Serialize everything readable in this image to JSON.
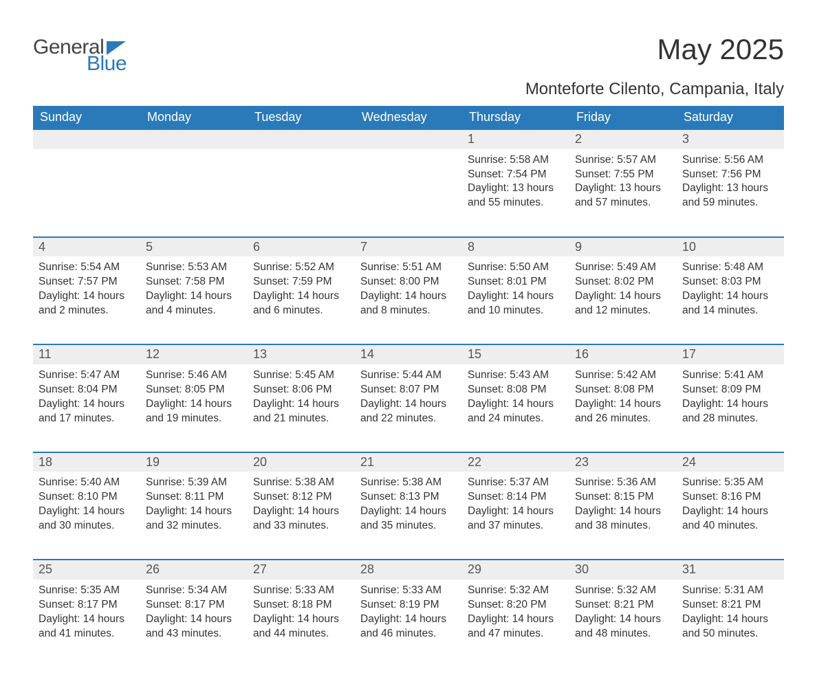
{
  "logo": {
    "text1": "General",
    "text2": "Blue",
    "text1_color": "#444444",
    "text2_color": "#2a7ab9",
    "triangle_color": "#2a7ab9"
  },
  "title": "May 2025",
  "subtitle": "Monteforte Cilento, Campania, Italy",
  "colors": {
    "header_bg": "#2a7ab9",
    "header_text": "#ffffff",
    "daynum_bg": "#eeeeee",
    "daynum_text": "#555555",
    "body_text": "#333333",
    "divider": "#2a7ab9",
    "page_bg": "#ffffff"
  },
  "typography": {
    "title_fontsize": 42,
    "subtitle_fontsize": 24,
    "header_fontsize": 18,
    "daynum_fontsize": 18,
    "cell_fontsize": 15.5,
    "logo_fontsize": 30,
    "font_family": "Arial"
  },
  "columns": [
    "Sunday",
    "Monday",
    "Tuesday",
    "Wednesday",
    "Thursday",
    "Friday",
    "Saturday"
  ],
  "weeks": [
    [
      null,
      null,
      null,
      null,
      {
        "day": "1",
        "sunrise": "5:58 AM",
        "sunset": "7:54 PM",
        "daylight": "13 hours and 55 minutes."
      },
      {
        "day": "2",
        "sunrise": "5:57 AM",
        "sunset": "7:55 PM",
        "daylight": "13 hours and 57 minutes."
      },
      {
        "day": "3",
        "sunrise": "5:56 AM",
        "sunset": "7:56 PM",
        "daylight": "13 hours and 59 minutes."
      }
    ],
    [
      {
        "day": "4",
        "sunrise": "5:54 AM",
        "sunset": "7:57 PM",
        "daylight": "14 hours and 2 minutes."
      },
      {
        "day": "5",
        "sunrise": "5:53 AM",
        "sunset": "7:58 PM",
        "daylight": "14 hours and 4 minutes."
      },
      {
        "day": "6",
        "sunrise": "5:52 AM",
        "sunset": "7:59 PM",
        "daylight": "14 hours and 6 minutes."
      },
      {
        "day": "7",
        "sunrise": "5:51 AM",
        "sunset": "8:00 PM",
        "daylight": "14 hours and 8 minutes."
      },
      {
        "day": "8",
        "sunrise": "5:50 AM",
        "sunset": "8:01 PM",
        "daylight": "14 hours and 10 minutes."
      },
      {
        "day": "9",
        "sunrise": "5:49 AM",
        "sunset": "8:02 PM",
        "daylight": "14 hours and 12 minutes."
      },
      {
        "day": "10",
        "sunrise": "5:48 AM",
        "sunset": "8:03 PM",
        "daylight": "14 hours and 14 minutes."
      }
    ],
    [
      {
        "day": "11",
        "sunrise": "5:47 AM",
        "sunset": "8:04 PM",
        "daylight": "14 hours and 17 minutes."
      },
      {
        "day": "12",
        "sunrise": "5:46 AM",
        "sunset": "8:05 PM",
        "daylight": "14 hours and 19 minutes."
      },
      {
        "day": "13",
        "sunrise": "5:45 AM",
        "sunset": "8:06 PM",
        "daylight": "14 hours and 21 minutes."
      },
      {
        "day": "14",
        "sunrise": "5:44 AM",
        "sunset": "8:07 PM",
        "daylight": "14 hours and 22 minutes."
      },
      {
        "day": "15",
        "sunrise": "5:43 AM",
        "sunset": "8:08 PM",
        "daylight": "14 hours and 24 minutes."
      },
      {
        "day": "16",
        "sunrise": "5:42 AM",
        "sunset": "8:08 PM",
        "daylight": "14 hours and 26 minutes."
      },
      {
        "day": "17",
        "sunrise": "5:41 AM",
        "sunset": "8:09 PM",
        "daylight": "14 hours and 28 minutes."
      }
    ],
    [
      {
        "day": "18",
        "sunrise": "5:40 AM",
        "sunset": "8:10 PM",
        "daylight": "14 hours and 30 minutes."
      },
      {
        "day": "19",
        "sunrise": "5:39 AM",
        "sunset": "8:11 PM",
        "daylight": "14 hours and 32 minutes."
      },
      {
        "day": "20",
        "sunrise": "5:38 AM",
        "sunset": "8:12 PM",
        "daylight": "14 hours and 33 minutes."
      },
      {
        "day": "21",
        "sunrise": "5:38 AM",
        "sunset": "8:13 PM",
        "daylight": "14 hours and 35 minutes."
      },
      {
        "day": "22",
        "sunrise": "5:37 AM",
        "sunset": "8:14 PM",
        "daylight": "14 hours and 37 minutes."
      },
      {
        "day": "23",
        "sunrise": "5:36 AM",
        "sunset": "8:15 PM",
        "daylight": "14 hours and 38 minutes."
      },
      {
        "day": "24",
        "sunrise": "5:35 AM",
        "sunset": "8:16 PM",
        "daylight": "14 hours and 40 minutes."
      }
    ],
    [
      {
        "day": "25",
        "sunrise": "5:35 AM",
        "sunset": "8:17 PM",
        "daylight": "14 hours and 41 minutes."
      },
      {
        "day": "26",
        "sunrise": "5:34 AM",
        "sunset": "8:17 PM",
        "daylight": "14 hours and 43 minutes."
      },
      {
        "day": "27",
        "sunrise": "5:33 AM",
        "sunset": "8:18 PM",
        "daylight": "14 hours and 44 minutes."
      },
      {
        "day": "28",
        "sunrise": "5:33 AM",
        "sunset": "8:19 PM",
        "daylight": "14 hours and 46 minutes."
      },
      {
        "day": "29",
        "sunrise": "5:32 AM",
        "sunset": "8:20 PM",
        "daylight": "14 hours and 47 minutes."
      },
      {
        "day": "30",
        "sunrise": "5:32 AM",
        "sunset": "8:21 PM",
        "daylight": "14 hours and 48 minutes."
      },
      {
        "day": "31",
        "sunrise": "5:31 AM",
        "sunset": "8:21 PM",
        "daylight": "14 hours and 50 minutes."
      }
    ]
  ],
  "labels": {
    "sunrise": "Sunrise:",
    "sunset": "Sunset:",
    "daylight": "Daylight:"
  }
}
